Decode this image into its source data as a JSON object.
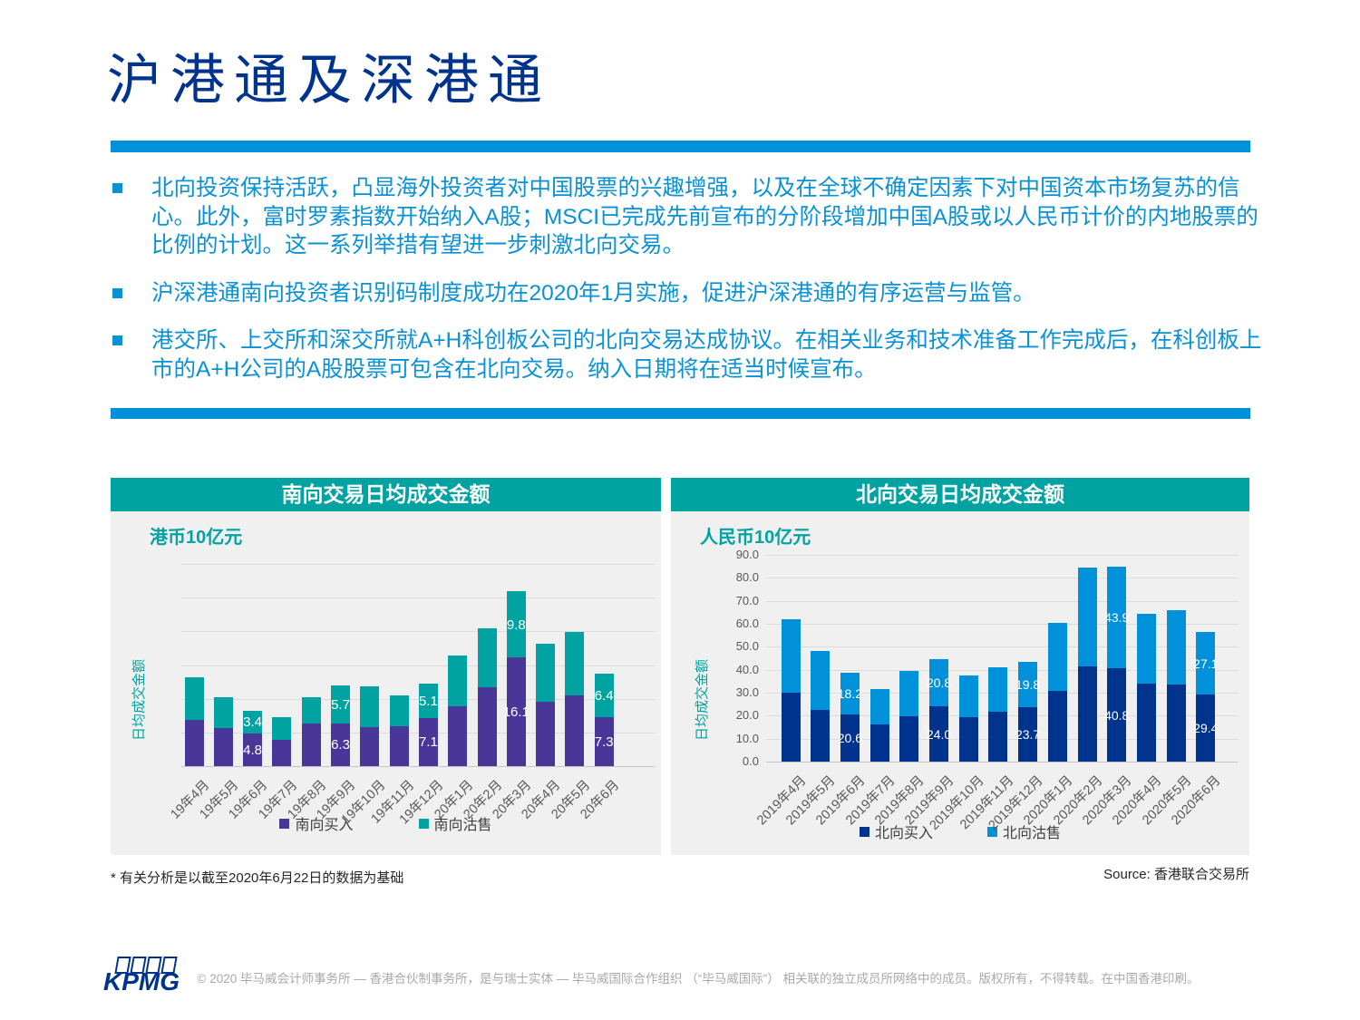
{
  "page": {
    "title": "沪港通及深港通",
    "bullets": [
      "北向投资保持活跃，凸显海外投资者对中国股票的兴趣增强，以及在全球不确定因素下对中国资本市场复苏的信心。此外，富时罗素指数开始纳入A股；MSCI已完成先前宣布的分阶段增加中国A股或以人民币计价的内地股票的比例的计划。这一系列举措有望进一步刺激北向交易。",
      "沪深港通南向投资者识别码制度成功在2020年1月实施，促进沪深港通的有序运营与监管。",
      "港交所、上交所和深交所就A+H科创板公司的北向交易达成协议。在相关业务和技术准备工作完成后，在科创板上市的A+H公司的A股股票可包含在北向交易。纳入日期将在适当时候宣布。"
    ],
    "footnote": "* 有关分析是以截至2020年6月22日的数据为基础",
    "source": "Source: 香港联合交易所",
    "logo_text": "KPMG",
    "copyright": "© 2020 毕马威会计师事务所 — 香港合伙制事务所，是与瑞士实体 — 毕马威国际合作组织 （“毕马威国际”） 相关联的独立成员所网络中的成员。版权所有，不得转载。在中国香港印刷。"
  },
  "colors": {
    "kpmg_blue": "#00338D",
    "accent_blue": "#0091DA",
    "teal": "#00A3A1",
    "purple": "#483698",
    "panel_bg": "#F0F0F0",
    "gridline": "#DCDCDC",
    "axis_text": "#595959"
  },
  "chart_data": [
    {
      "type": "bar",
      "stacked": true,
      "title": "南向交易日均成交金额",
      "unit_label": "港币10亿元",
      "ylabel": "日均成交金额",
      "categories": [
        "19年4月",
        "19年5月",
        "19年6月",
        "19年7月",
        "19年8月",
        "19年9月",
        "19年10月",
        "19年11月",
        "19年12月",
        "20年1月",
        "20年2月",
        "20年3月",
        "20年4月",
        "20年5月",
        "20年6月"
      ],
      "series": [
        {
          "name": "南向买入",
          "color": "#483698",
          "values": [
            6.8,
            5.6,
            4.8,
            3.9,
            6.3,
            6.3,
            5.8,
            5.9,
            7.1,
            8.9,
            11.7,
            16.1,
            9.6,
            10.5,
            7.3
          ]
        },
        {
          "name": "南向沽售",
          "color": "#00A3A1",
          "values": [
            6.4,
            4.6,
            3.4,
            3.4,
            3.9,
            5.7,
            6.0,
            4.6,
            5.1,
            7.5,
            8.8,
            9.8,
            8.5,
            9.4,
            6.4
          ]
        }
      ],
      "ylim": [
        0,
        30
      ],
      "grid_step": 5,
      "grid": true,
      "y_ticks": [],
      "labeled_indices": [
        2,
        5,
        8,
        11,
        14
      ],
      "legend_position": "bottom"
    },
    {
      "type": "bar",
      "stacked": true,
      "title": "北向交易日均成交金额",
      "unit_label": "人民币10亿元",
      "ylabel": "日均成交金额",
      "categories": [
        "2019年4月",
        "2019年5月",
        "2019年6月",
        "2019年7月",
        "2019年8月",
        "2019年9月",
        "2019年10月",
        "2019年11月",
        "2019年12月",
        "2020年1月",
        "2020年2月",
        "2020年3月",
        "2020年4月",
        "2020年5月",
        "2020年6月"
      ],
      "series": [
        {
          "name": "北向买入",
          "color": "#00338D",
          "values": [
            30.1,
            22.6,
            20.6,
            16.2,
            19.9,
            24.0,
            19.5,
            21.9,
            23.7,
            30.6,
            41.6,
            40.8,
            33.8,
            33.5,
            29.4
          ]
        },
        {
          "name": "北向沽售",
          "color": "#0091DA",
          "values": [
            31.8,
            25.5,
            18.2,
            15.5,
            19.6,
            20.8,
            18.2,
            19.3,
            19.8,
            29.8,
            42.9,
            43.9,
            30.5,
            32.5,
            27.1
          ]
        }
      ],
      "ylim": [
        0,
        90
      ],
      "grid_step": 10,
      "grid": true,
      "y_ticks": [
        "0.0",
        "10.0",
        "20.0",
        "30.0",
        "40.0",
        "50.0",
        "60.0",
        "70.0",
        "80.0",
        "90.0"
      ],
      "labeled_indices": [
        2,
        5,
        8,
        11,
        14
      ],
      "legend_position": "bottom"
    }
  ]
}
